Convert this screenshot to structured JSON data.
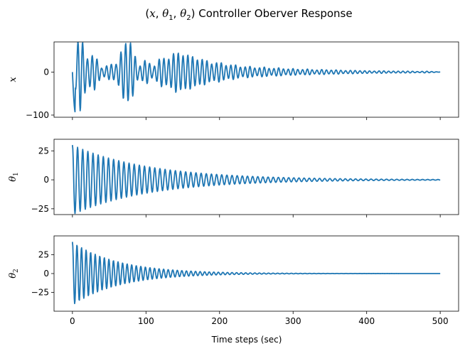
{
  "chart_data": {
    "type": "line",
    "title": "(x, θ₁, θ₂) Controller Oberver Response",
    "xlabel": "Time steps (sec)",
    "xlim": [
      -25,
      525
    ],
    "x_ticks": [
      0,
      100,
      200,
      300,
      400,
      500
    ],
    "x_tick_labels": [
      "0",
      "100",
      "200",
      "300",
      "400",
      "500"
    ],
    "line_color": "#1f77b4",
    "subplots": [
      {
        "ylabel": "x",
        "ylim": [
          -105,
          70
        ],
        "y_ticks": [
          -100,
          0
        ],
        "y_tick_labels": [
          "−100",
          "0"
        ],
        "series": {
          "x0": 0,
          "dx": 0.5,
          "samples": [
            0,
            -94,
            -30,
            42,
            8,
            -18,
            18,
            66,
            -68,
            10,
            30,
            -10,
            35,
            -28,
            48,
            -38,
            40,
            -28,
            30,
            -18,
            24,
            -14,
            18,
            -10,
            14,
            -8,
            12,
            -7,
            10,
            -6,
            8,
            -5,
            7,
            -4,
            6,
            -4,
            5,
            -3,
            4,
            -3,
            3,
            -2,
            3,
            -2,
            2,
            -2,
            2,
            -1,
            2,
            -1,
            0
          ],
          "sample_dx": 10,
          "period": 6.5
        }
      },
      {
        "ylabel": "θ₁",
        "ylim": [
          -30,
          35
        ],
        "y_ticks": [
          -25,
          0,
          25
        ],
        "y_tick_labels": [
          "−25",
          "0",
          "25"
        ],
        "series": {
          "x0": 0,
          "dx": 0.5,
          "amplitude": 30,
          "decay": 0.0095,
          "period": 7.0
        }
      },
      {
        "ylabel": "θ₂",
        "ylim": [
          -50,
          50
        ],
        "y_ticks": [
          -25,
          0,
          25
        ],
        "y_tick_labels": [
          "−25",
          "0",
          "25"
        ],
        "series": {
          "x0": 0,
          "dx": 0.5,
          "amplitude": 42,
          "decay": 0.016,
          "period": 6.2
        }
      }
    ]
  }
}
